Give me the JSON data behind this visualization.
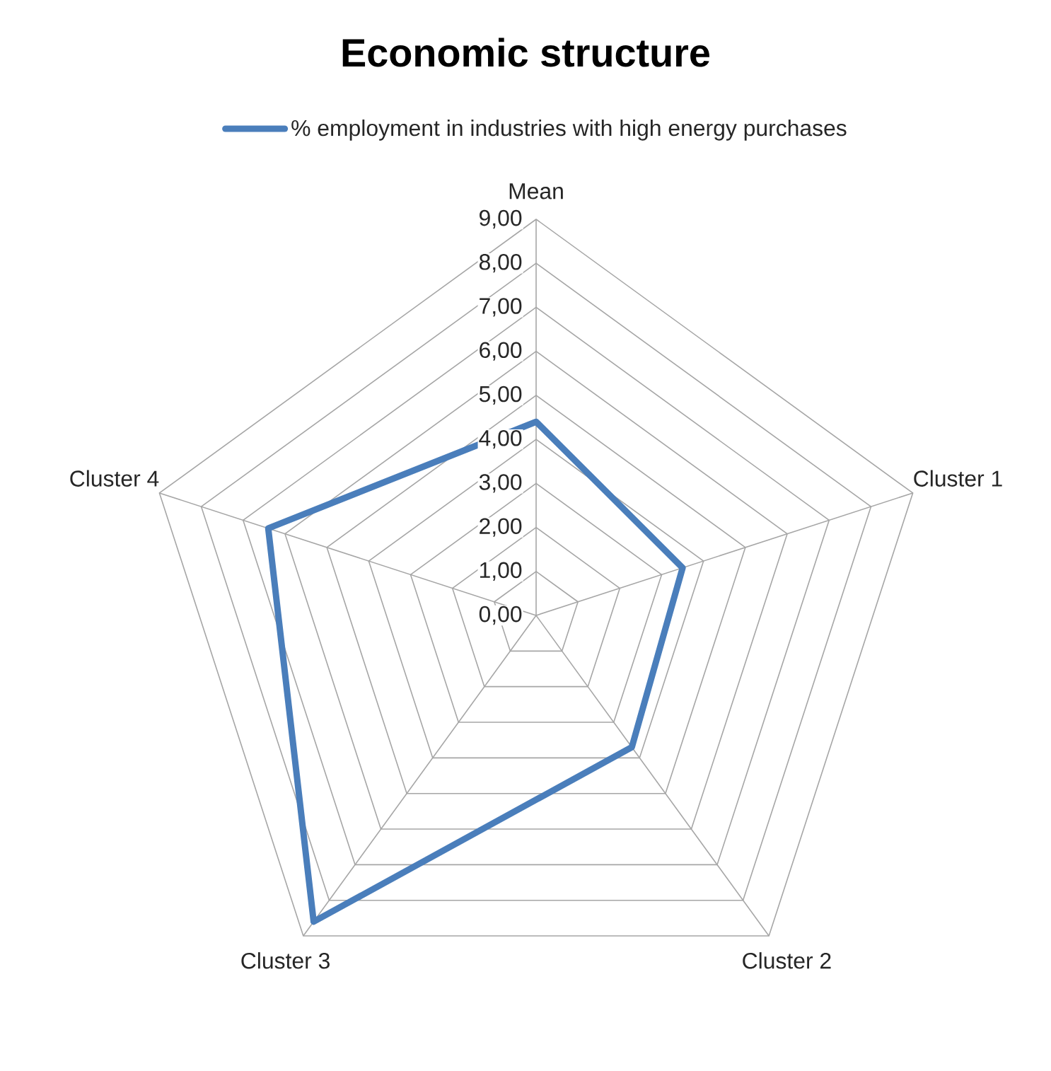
{
  "chart_data": {
    "type": "radar",
    "title": "Economic structure",
    "categories": [
      "Mean",
      "Cluster 1",
      "Cluster 2",
      "Cluster 3",
      "Cluster 4"
    ],
    "series": [
      {
        "name": "% employment in industries with high energy purchases",
        "color": "#4a7ebb",
        "values": [
          4.4,
          3.5,
          3.7,
          8.6,
          6.4
        ]
      }
    ],
    "ylim": [
      0,
      9
    ],
    "yticks": [
      {
        "value": 0,
        "label": "0,00"
      },
      {
        "value": 1,
        "label": "1,00"
      },
      {
        "value": 2,
        "label": "2,00"
      },
      {
        "value": 3,
        "label": "3,00"
      },
      {
        "value": 4,
        "label": "4,00"
      },
      {
        "value": 5,
        "label": "5,00"
      },
      {
        "value": 6,
        "label": "6,00"
      },
      {
        "value": 7,
        "label": "7,00"
      },
      {
        "value": 8,
        "label": "8,00"
      },
      {
        "value": 9,
        "label": "9,00"
      }
    ],
    "grid": true,
    "legend": "top",
    "line_style": "solid"
  }
}
